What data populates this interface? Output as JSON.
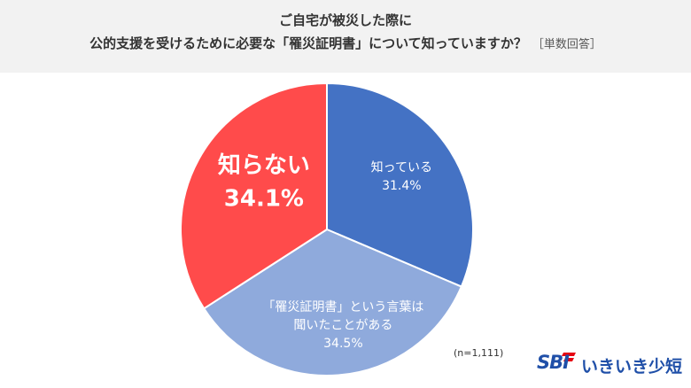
{
  "title": {
    "line1": "ご自宅が被災した際に",
    "line2": "公的支援を受けるために必要な「罹災証明書」について知っていますか？",
    "note": "［単数回答］"
  },
  "sample_size": "(n=1,111)",
  "logo": {
    "brand": "SBI",
    "name": "いきいき少短"
  },
  "colors": {
    "header_bg": "#f2f2f2",
    "slice_know": "#4472c4",
    "slice_heard": "#8faadc",
    "slice_dont": "#ff4b4b",
    "brand": "#1f4fa8"
  },
  "chart_data": {
    "type": "pie",
    "title": "ご自宅が被災した際に 公的支援を受けるために必要な「罹災証明書」について知っていますか？",
    "start_angle_deg": 0,
    "direction": "clockwise",
    "slices": [
      {
        "label": "知っている",
        "label_lines": [
          "知っている"
        ],
        "value": 31.4,
        "value_label": "31.4%",
        "color": "#4472c4"
      },
      {
        "label": "「罹災証明書」という言葉は聞いたことがある",
        "label_lines": [
          "「罹災証明書」という言葉は",
          "聞いたことがある"
        ],
        "value": 34.5,
        "value_label": "34.5%",
        "color": "#8faadc"
      },
      {
        "label": "知らない",
        "label_lines": [
          "知らない"
        ],
        "value": 34.1,
        "value_label": "34.1%",
        "color": "#ff4b4b"
      }
    ]
  }
}
